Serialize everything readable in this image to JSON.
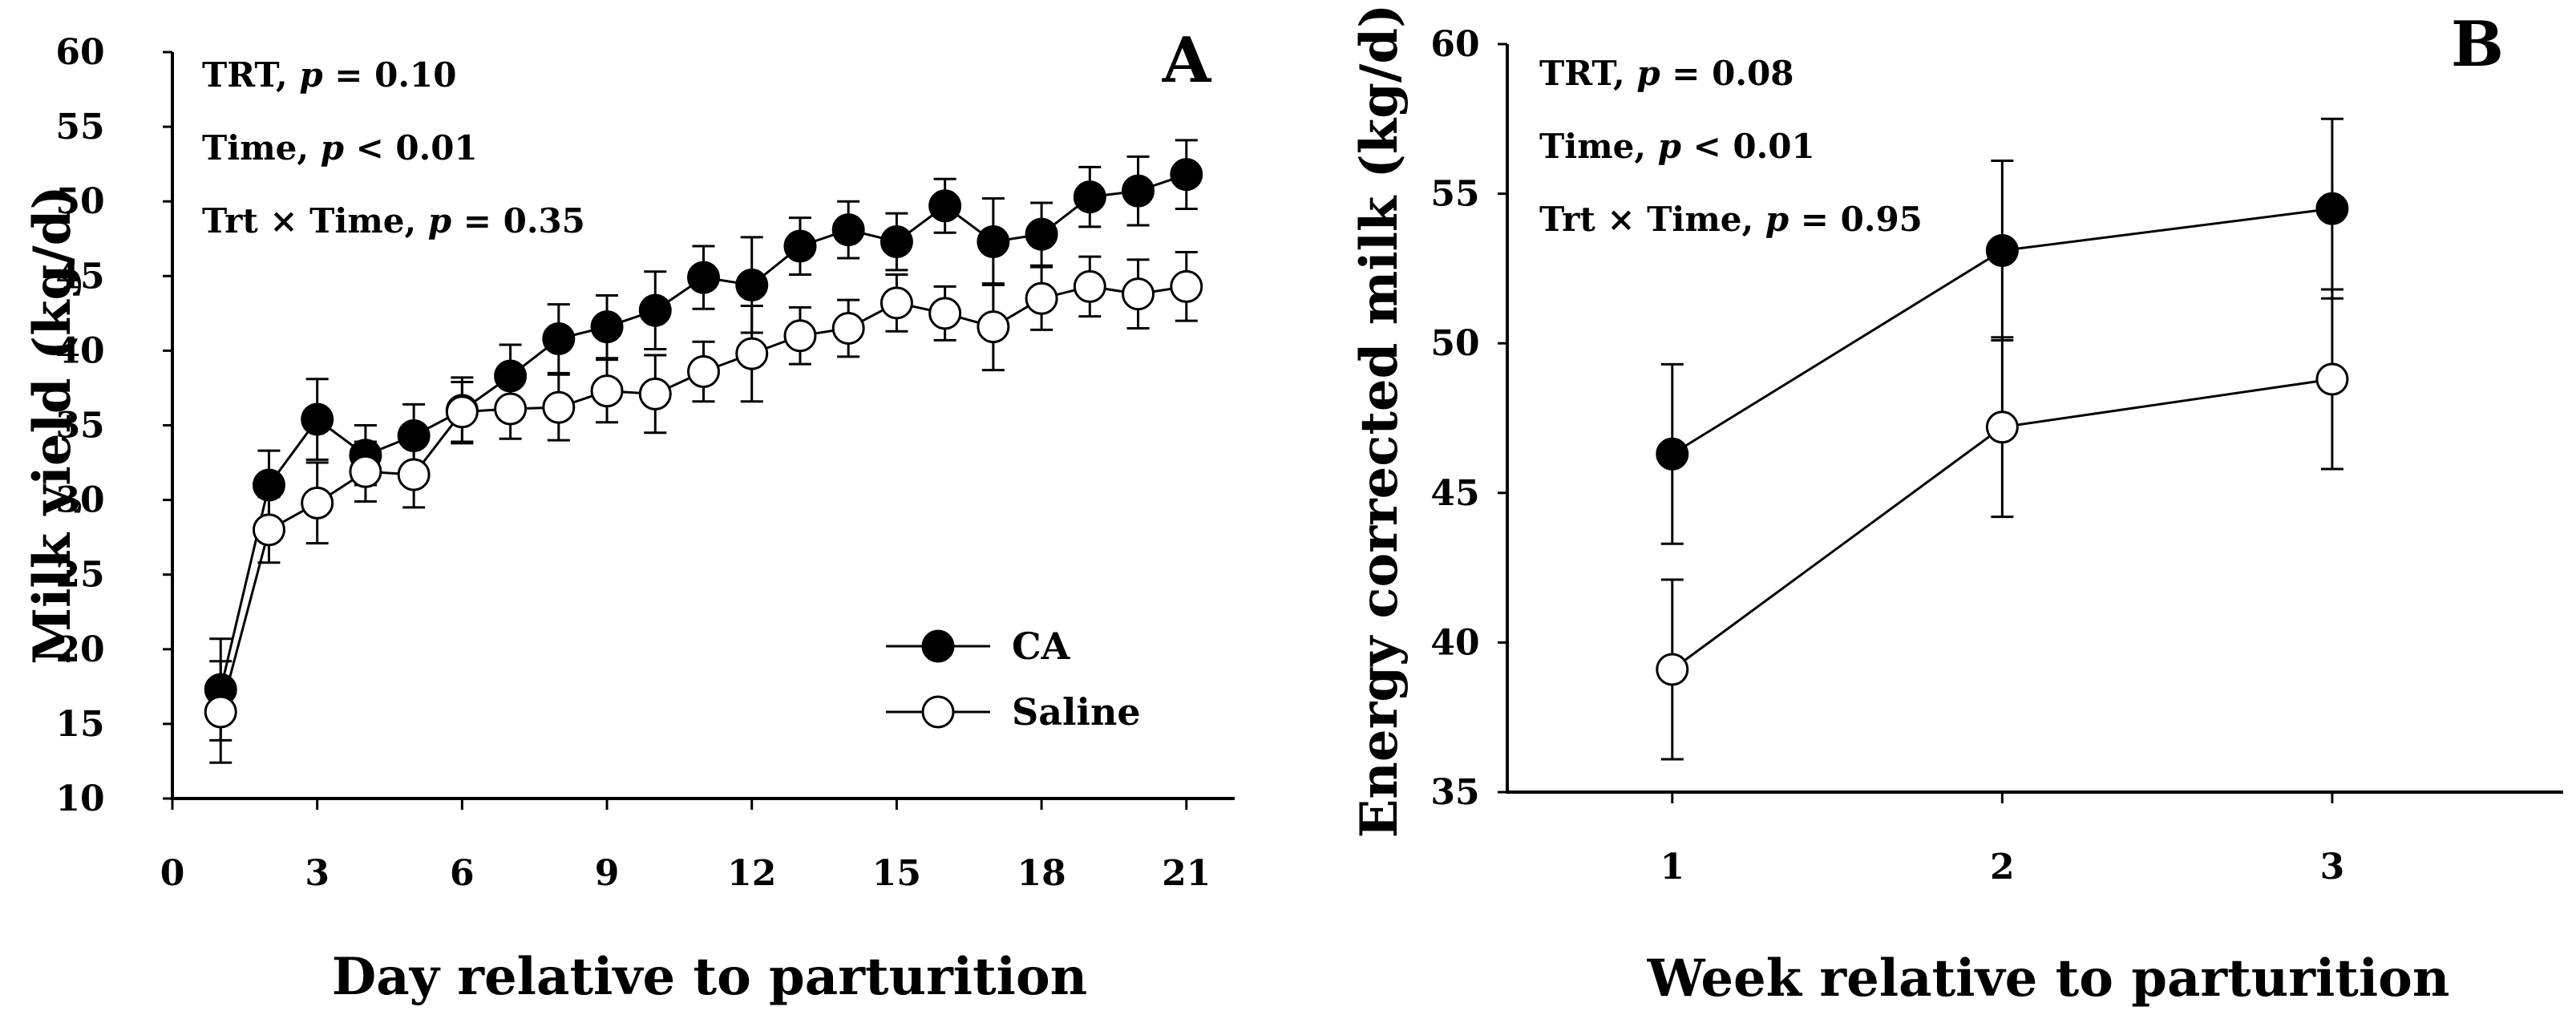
{
  "chart_data": [
    {
      "type": "line",
      "panel_letter": "A",
      "xlabel": "Day relative to parturition",
      "ylabel": "Milk yield (kg/d)",
      "xlim": [
        0,
        22
      ],
      "ylim": [
        10,
        60
      ],
      "xticks": [
        0,
        3,
        6,
        9,
        12,
        15,
        18,
        21
      ],
      "yticks": [
        10,
        15,
        20,
        25,
        30,
        35,
        40,
        45,
        50,
        55,
        60
      ],
      "stats": [
        {
          "label": "TRT, ",
          "p_symbol": "p",
          "value": " = 0.10"
        },
        {
          "label": "Time, ",
          "p_symbol": "p",
          "value": " < 0.01"
        },
        {
          "label": "Trt × Time, ",
          "p_symbol": "p",
          "value": " = 0.35"
        }
      ],
      "legend_position": "bottom-right",
      "x": [
        1,
        2,
        3,
        4,
        5,
        6,
        7,
        8,
        9,
        10,
        11,
        12,
        13,
        14,
        15,
        16,
        17,
        18,
        19,
        20,
        21
      ],
      "series": [
        {
          "name": "CA",
          "marker": "filled-circle",
          "values": [
            17.3,
            31.0,
            35.4,
            33.0,
            34.3,
            36.0,
            38.3,
            40.8,
            41.6,
            42.7,
            44.9,
            44.4,
            47.0,
            48.1,
            47.3,
            49.7,
            47.3,
            47.8,
            50.3,
            50.7,
            51.8
          ],
          "errors": [
            3.4,
            2.3,
            2.7,
            2.0,
            2.1,
            2.2,
            2.1,
            2.3,
            2.1,
            2.6,
            2.1,
            3.2,
            1.9,
            1.9,
            1.9,
            1.8,
            2.9,
            2.1,
            2.0,
            2.3,
            2.3
          ]
        },
        {
          "name": "Saline",
          "marker": "open-circle",
          "values": [
            15.8,
            28.0,
            29.8,
            31.9,
            31.7,
            35.9,
            36.1,
            36.2,
            37.3,
            37.1,
            38.6,
            39.8,
            41.0,
            41.5,
            43.2,
            42.5,
            41.6,
            43.5,
            44.3,
            43.8,
            44.3
          ],
          "errors": [
            3.4,
            2.2,
            2.7,
            2.0,
            2.2,
            2.0,
            2.0,
            2.2,
            2.1,
            2.6,
            2.0,
            3.2,
            1.9,
            1.9,
            1.9,
            1.8,
            2.9,
            2.1,
            2.0,
            2.3,
            2.3
          ]
        }
      ]
    },
    {
      "type": "line",
      "panel_letter": "B",
      "xlabel": "Week relative to parturition",
      "ylabel": "Energy corrected milk (kg/d)",
      "xlim": [
        0.5,
        3.7
      ],
      "ylim": [
        35,
        60
      ],
      "xticks": [
        1,
        2,
        3
      ],
      "yticks": [
        35,
        40,
        45,
        50,
        55,
        60
      ],
      "stats": [
        {
          "label": "TRT, ",
          "p_symbol": "p",
          "value": " = 0.08"
        },
        {
          "label": "Time, ",
          "p_symbol": "p",
          "value": " < 0.01"
        },
        {
          "label": "Trt × Time, ",
          "p_symbol": "p",
          "value": " = 0.95"
        }
      ],
      "x": [
        1,
        2,
        3
      ],
      "series": [
        {
          "name": "CA",
          "marker": "filled-circle",
          "values": [
            46.3,
            53.1,
            54.5
          ],
          "errors": [
            3.0,
            3.0,
            3.0
          ]
        },
        {
          "name": "Saline",
          "marker": "open-circle",
          "values": [
            39.1,
            47.2,
            48.8
          ],
          "errors": [
            3.0,
            3.0,
            3.0
          ]
        }
      ]
    }
  ]
}
